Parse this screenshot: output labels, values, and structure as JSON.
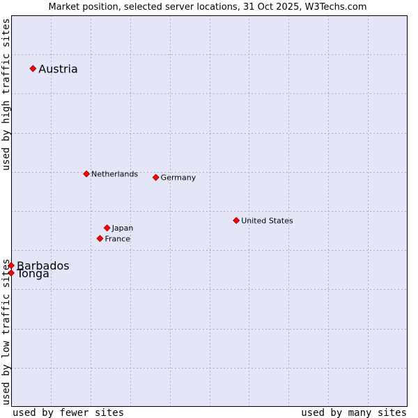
{
  "chart_data": {
    "type": "scatter",
    "title": "Market position, selected server locations, 31 Oct 2025, W3Techs.com",
    "xlabel_left": "used by fewer sites",
    "xlabel_right": "used by many sites",
    "ylabel_bottom": "used by low traffic sites",
    "ylabel_top": "used by high traffic sites",
    "xlim": [
      0,
      100
    ],
    "ylim": [
      0,
      100
    ],
    "grid": true,
    "colors": {
      "plot_bg": "#e4e6f8",
      "grid": "#a9abc4",
      "border": "#000000",
      "marker": "#ff0000",
      "marker_edge": "#880000"
    },
    "points": [
      {
        "label": "Austria",
        "x": 5.5,
        "y": 86.4,
        "emphasis": true
      },
      {
        "label": "Netherlands",
        "x": 19.0,
        "y": 59.5,
        "emphasis": false
      },
      {
        "label": "Germany",
        "x": 36.5,
        "y": 58.6,
        "emphasis": false
      },
      {
        "label": "United States",
        "x": 56.8,
        "y": 47.6,
        "emphasis": false
      },
      {
        "label": "Japan",
        "x": 24.2,
        "y": 45.7,
        "emphasis": false
      },
      {
        "label": "France",
        "x": 22.4,
        "y": 43.0,
        "emphasis": false
      },
      {
        "label": "Barbados",
        "x": 0.0,
        "y": 36.1,
        "emphasis": true
      },
      {
        "label": "Tonga",
        "x": 0.0,
        "y": 34.2,
        "emphasis": true
      }
    ]
  }
}
